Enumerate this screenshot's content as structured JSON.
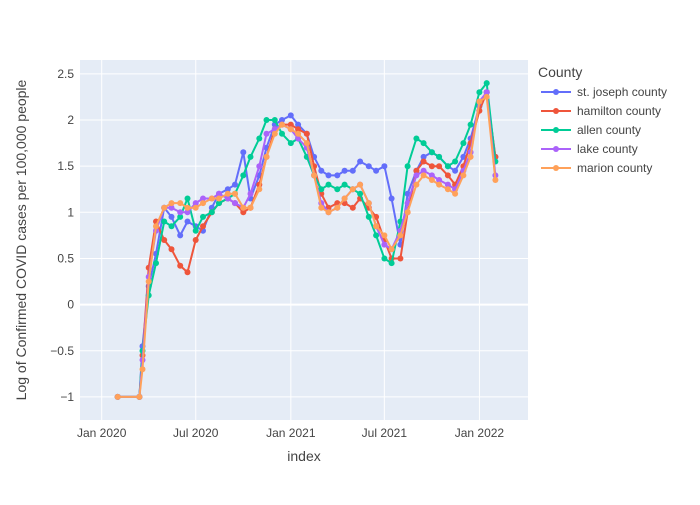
{
  "chart_data": {
    "type": "line",
    "title": "",
    "xlabel": "index",
    "ylabel": "Log of Confirmed COVID cases per 100,000 people",
    "x_range": [
      "2019-11-20",
      "2022-04-05"
    ],
    "ylim": [
      -1.25,
      2.65
    ],
    "x_ticks": [
      {
        "date": "2020-01-01",
        "label": "Jan 2020"
      },
      {
        "date": "2020-07-01",
        "label": "Jul 2020"
      },
      {
        "date": "2021-01-01",
        "label": "Jan 2021"
      },
      {
        "date": "2021-07-01",
        "label": "Jul 2021"
      },
      {
        "date": "2022-01-01",
        "label": "Jan 2022"
      }
    ],
    "y_ticks": [
      {
        "value": -1,
        "label": "−1"
      },
      {
        "value": -0.5,
        "label": "−0.5"
      },
      {
        "value": 0,
        "label": "0"
      },
      {
        "value": 0.5,
        "label": "0.5"
      },
      {
        "value": 1,
        "label": "1"
      },
      {
        "value": 1.5,
        "label": "1.5"
      },
      {
        "value": 2,
        "label": "2"
      },
      {
        "value": 2.5,
        "label": "2.5"
      }
    ],
    "grid": true,
    "legend": {
      "title": "County",
      "placement": "right"
    },
    "series": [
      {
        "name": "st. joseph county",
        "color": "#636efa",
        "x": [
          "2020-02-01",
          "2020-03-14",
          "2020-03-20",
          "2020-04-01",
          "2020-04-15",
          "2020-05-01",
          "2020-05-15",
          "2020-06-01",
          "2020-06-15",
          "2020-07-01",
          "2020-07-15",
          "2020-08-01",
          "2020-08-15",
          "2020-09-01",
          "2020-09-15",
          "2020-10-01",
          "2020-10-15",
          "2020-11-01",
          "2020-11-15",
          "2020-12-01",
          "2020-12-15",
          "2021-01-01",
          "2021-01-15",
          "2021-02-01",
          "2021-02-15",
          "2021-03-01",
          "2021-03-15",
          "2021-04-01",
          "2021-04-15",
          "2021-05-01",
          "2021-05-15",
          "2021-06-01",
          "2021-06-15",
          "2021-07-01",
          "2021-07-15",
          "2021-08-01",
          "2021-08-15",
          "2021-09-01",
          "2021-09-15",
          "2021-10-01",
          "2021-10-15",
          "2021-11-01",
          "2021-11-15",
          "2021-12-01",
          "2021-12-15",
          "2022-01-01",
          "2022-01-15",
          "2022-02-01"
        ],
        "y": [
          -1,
          -1,
          -0.45,
          0.2,
          0.55,
          1.05,
          0.95,
          0.75,
          0.9,
          0.85,
          0.8,
          1.05,
          1.2,
          1.25,
          1.3,
          1.65,
          1.15,
          1.4,
          1.7,
          1.95,
          2.0,
          2.05,
          1.95,
          1.85,
          1.6,
          1.45,
          1.4,
          1.4,
          1.45,
          1.45,
          1.55,
          1.5,
          1.45,
          1.5,
          1.15,
          0.65,
          1.2,
          1.45,
          1.6,
          1.65,
          1.6,
          1.5,
          1.45,
          1.6,
          1.8,
          2.15,
          2.3,
          1.6
        ]
      },
      {
        "name": "hamilton county",
        "color": "#ef553b",
        "x": [
          "2020-02-01",
          "2020-03-14",
          "2020-03-20",
          "2020-04-01",
          "2020-04-15",
          "2020-05-01",
          "2020-05-15",
          "2020-06-01",
          "2020-06-15",
          "2020-07-01",
          "2020-07-15",
          "2020-08-01",
          "2020-08-15",
          "2020-09-01",
          "2020-09-15",
          "2020-10-01",
          "2020-10-15",
          "2020-11-01",
          "2020-11-15",
          "2020-12-01",
          "2020-12-15",
          "2021-01-01",
          "2021-01-15",
          "2021-02-01",
          "2021-02-15",
          "2021-03-01",
          "2021-03-15",
          "2021-04-01",
          "2021-04-15",
          "2021-05-01",
          "2021-05-15",
          "2021-06-01",
          "2021-06-15",
          "2021-07-01",
          "2021-07-15",
          "2021-08-01",
          "2021-08-15",
          "2021-09-01",
          "2021-09-15",
          "2021-10-01",
          "2021-10-15",
          "2021-11-01",
          "2021-11-15",
          "2021-12-01",
          "2021-12-15",
          "2022-01-01",
          "2022-01-15",
          "2022-02-01"
        ],
        "y": [
          -1,
          -1,
          -0.55,
          0.4,
          0.9,
          0.7,
          0.6,
          0.42,
          0.35,
          0.7,
          0.85,
          1.0,
          1.1,
          1.15,
          1.1,
          1.0,
          1.05,
          1.3,
          1.6,
          1.9,
          1.95,
          1.95,
          1.9,
          1.85,
          1.5,
          1.2,
          1.05,
          1.1,
          1.1,
          1.05,
          1.15,
          1.05,
          0.95,
          0.7,
          0.5,
          0.5,
          1.0,
          1.45,
          1.55,
          1.5,
          1.5,
          1.4,
          1.3,
          1.5,
          1.75,
          2.1,
          2.3,
          1.6
        ]
      },
      {
        "name": "allen county",
        "color": "#00cc96",
        "x": [
          "2020-02-01",
          "2020-03-14",
          "2020-03-20",
          "2020-04-01",
          "2020-04-15",
          "2020-05-01",
          "2020-05-15",
          "2020-06-01",
          "2020-06-15",
          "2020-07-01",
          "2020-07-15",
          "2020-08-01",
          "2020-08-15",
          "2020-09-01",
          "2020-09-15",
          "2020-10-01",
          "2020-10-15",
          "2020-11-01",
          "2020-11-15",
          "2020-12-01",
          "2020-12-15",
          "2021-01-01",
          "2021-01-15",
          "2021-02-01",
          "2021-02-15",
          "2021-03-01",
          "2021-03-15",
          "2021-04-01",
          "2021-04-15",
          "2021-05-01",
          "2021-05-15",
          "2021-06-01",
          "2021-06-15",
          "2021-07-01",
          "2021-07-15",
          "2021-08-01",
          "2021-08-15",
          "2021-09-01",
          "2021-09-15",
          "2021-10-01",
          "2021-10-15",
          "2021-11-01",
          "2021-11-15",
          "2021-12-01",
          "2021-12-15",
          "2022-01-01",
          "2022-01-15",
          "2022-02-01"
        ],
        "y": [
          -1,
          -1,
          -0.5,
          0.1,
          0.45,
          0.9,
          0.85,
          0.95,
          1.15,
          0.8,
          0.95,
          1.0,
          1.1,
          1.15,
          1.2,
          1.4,
          1.6,
          1.8,
          2.0,
          2.0,
          1.85,
          1.75,
          1.8,
          1.6,
          1.4,
          1.25,
          1.3,
          1.25,
          1.3,
          1.25,
          1.2,
          0.95,
          0.75,
          0.5,
          0.45,
          0.9,
          1.5,
          1.8,
          1.75,
          1.65,
          1.6,
          1.5,
          1.55,
          1.75,
          1.95,
          2.3,
          2.4,
          1.55
        ]
      },
      {
        "name": "lake county",
        "color": "#ab63fa",
        "x": [
          "2020-02-01",
          "2020-03-14",
          "2020-03-20",
          "2020-04-01",
          "2020-04-15",
          "2020-05-01",
          "2020-05-15",
          "2020-06-01",
          "2020-06-15",
          "2020-07-01",
          "2020-07-15",
          "2020-08-01",
          "2020-08-15",
          "2020-09-01",
          "2020-09-15",
          "2020-10-01",
          "2020-10-15",
          "2020-11-01",
          "2020-11-15",
          "2020-12-01",
          "2020-12-15",
          "2021-01-01",
          "2021-01-15",
          "2021-02-01",
          "2021-02-15",
          "2021-03-01",
          "2021-03-15",
          "2021-04-01",
          "2021-04-15",
          "2021-05-01",
          "2021-05-15",
          "2021-06-01",
          "2021-06-15",
          "2021-07-01",
          "2021-07-15",
          "2021-08-01",
          "2021-08-15",
          "2021-09-01",
          "2021-09-15",
          "2021-10-01",
          "2021-10-15",
          "2021-11-01",
          "2021-11-15",
          "2021-12-01",
          "2021-12-15",
          "2022-01-01",
          "2022-01-15",
          "2022-02-01"
        ],
        "y": [
          -1,
          -1,
          -0.6,
          0.3,
          0.8,
          1.05,
          1.05,
          1.0,
          1.0,
          1.1,
          1.15,
          1.15,
          1.2,
          1.15,
          1.1,
          1.05,
          1.2,
          1.5,
          1.85,
          1.9,
          1.95,
          1.9,
          1.8,
          1.7,
          1.4,
          1.1,
          1.0,
          1.05,
          1.15,
          1.25,
          1.3,
          1.1,
          0.85,
          0.65,
          0.6,
          0.8,
          1.1,
          1.4,
          1.45,
          1.4,
          1.35,
          1.3,
          1.25,
          1.45,
          1.65,
          2.2,
          2.3,
          1.4
        ]
      },
      {
        "name": "marion county",
        "color": "#ffa15a",
        "x": [
          "2020-02-01",
          "2020-03-14",
          "2020-03-20",
          "2020-04-01",
          "2020-04-15",
          "2020-05-01",
          "2020-05-15",
          "2020-06-01",
          "2020-06-15",
          "2020-07-01",
          "2020-07-15",
          "2020-08-01",
          "2020-08-15",
          "2020-09-01",
          "2020-09-15",
          "2020-10-01",
          "2020-10-15",
          "2020-11-01",
          "2020-11-15",
          "2020-12-01",
          "2020-12-15",
          "2021-01-01",
          "2021-01-15",
          "2021-02-01",
          "2021-02-15",
          "2021-03-01",
          "2021-03-15",
          "2021-04-01",
          "2021-04-15",
          "2021-05-01",
          "2021-05-15",
          "2021-06-01",
          "2021-06-15",
          "2021-07-01",
          "2021-07-15",
          "2021-08-01",
          "2021-08-15",
          "2021-09-01",
          "2021-09-15",
          "2021-10-01",
          "2021-10-15",
          "2021-11-01",
          "2021-11-15",
          "2021-12-01",
          "2021-12-15",
          "2022-01-01",
          "2022-01-15",
          "2022-02-01"
        ],
        "y": [
          -1,
          -1,
          -0.7,
          0.25,
          0.85,
          1.05,
          1.1,
          1.1,
          1.05,
          1.05,
          1.1,
          1.15,
          1.15,
          1.2,
          1.2,
          1.05,
          1.05,
          1.25,
          1.6,
          1.85,
          1.95,
          1.9,
          1.85,
          1.75,
          1.4,
          1.05,
          1.0,
          1.05,
          1.15,
          1.25,
          1.3,
          1.1,
          0.85,
          0.75,
          0.6,
          0.75,
          1.0,
          1.3,
          1.4,
          1.35,
          1.3,
          1.25,
          1.2,
          1.4,
          1.6,
          2.2,
          2.25,
          1.35
        ]
      }
    ]
  }
}
